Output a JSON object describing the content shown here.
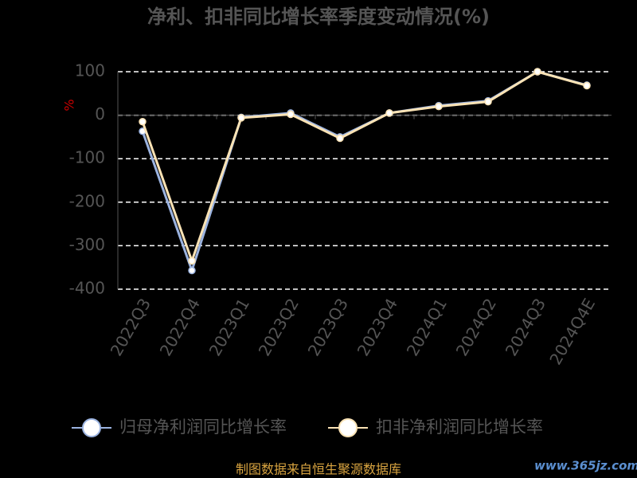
{
  "chart_data": {
    "type": "line",
    "title": "净利、扣非同比增长率季度变动情况(%)",
    "y_label": "%",
    "categories": [
      "2022Q3",
      "2022Q4",
      "2023Q1",
      "2023Q2",
      "2023Q3",
      "2023Q4",
      "2024Q1",
      "2024Q2",
      "2024Q3",
      "2024Q4E"
    ],
    "series": [
      {
        "name": "归母净利润同比增长率",
        "color": "#9bb3e0",
        "values": [
          -37,
          -357,
          -5,
          5,
          -50,
          5,
          22,
          33,
          100,
          69
        ]
      },
      {
        "name": "扣非净利润同比增长率",
        "color": "#fbe3b5",
        "values": [
          -15,
          -335,
          -6,
          2,
          -53,
          5,
          20,
          31,
          100,
          68
        ]
      }
    ],
    "ylim": [
      -400,
      100
    ],
    "yticks": [
      -400,
      -300,
      -200,
      -100,
      0,
      100
    ],
    "grid": true,
    "source": "制图数据来自恒生聚源数据库",
    "watermark": "www.365jz.com"
  }
}
